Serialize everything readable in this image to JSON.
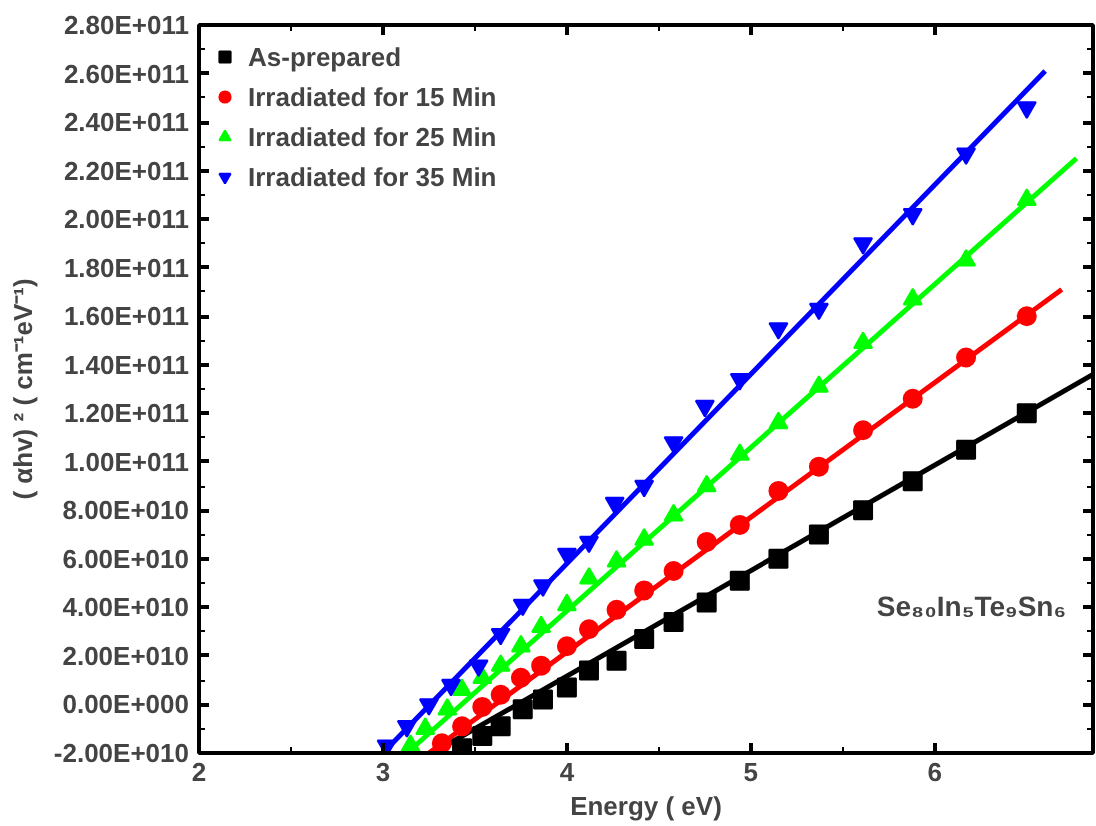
{
  "chart_data": {
    "type": "scatter",
    "xlabel": "Energy ( eV)",
    "ylabel": "( αhv) ² ( cm⁻¹eV⁻¹)",
    "xlim": [
      2,
      6.86
    ],
    "xticks": [
      2,
      3,
      4,
      5,
      6
    ],
    "ylim": [
      -20000000000.0,
      280000000000.0
    ],
    "yticks": [
      {
        "value": -20000000000.0,
        "label": "-2.00E+010"
      },
      {
        "value": 0,
        "label": "0.00E+000"
      },
      {
        "value": 20000000000.0,
        "label": "2.00E+010"
      },
      {
        "value": 40000000000.0,
        "label": "4.00E+010"
      },
      {
        "value": 60000000000.0,
        "label": "6.00E+010"
      },
      {
        "value": 80000000000.0,
        "label": "8.00E+010"
      },
      {
        "value": 100000000000.0,
        "label": "1.00E+011"
      },
      {
        "value": 120000000000.0,
        "label": "1.20E+011"
      },
      {
        "value": 140000000000.0,
        "label": "1.40E+011"
      },
      {
        "value": 160000000000.0,
        "label": "1.60E+011"
      },
      {
        "value": 180000000000.0,
        "label": "1.80E+011"
      },
      {
        "value": 200000000000.0,
        "label": "2.00E+011"
      },
      {
        "value": 220000000000.0,
        "label": "2.20E+011"
      },
      {
        "value": 240000000000.0,
        "label": "2.40E+011"
      },
      {
        "value": 260000000000.0,
        "label": "2.60E+011"
      },
      {
        "value": 280000000000.0,
        "label": "2.80E+011"
      }
    ],
    "grid": false,
    "legend": "top left",
    "annotations": [
      "Se₈₀In₅Te₉Sn₆"
    ],
    "series": [
      {
        "name": "As-prepared",
        "color": "#000000",
        "marker": "square",
        "x": [
          3.43,
          3.54,
          3.64,
          3.76,
          3.87,
          4.0,
          4.12,
          4.27,
          4.42,
          4.58,
          4.76,
          4.94,
          5.15,
          5.37,
          5.61,
          5.88,
          6.17,
          6.5
        ],
        "values": [
          -18000000000.0,
          -13000000000.0,
          -9000000000.0,
          -2000000000.0,
          2000000000.0,
          7000000000.0,
          14000000000.0,
          18000000000.0,
          27000000000.0,
          34000000000.0,
          42000000000.0,
          51000000000.0,
          60000000000.0,
          70000000000.0,
          80000000000.0,
          92000000000.0,
          105000000000.0,
          120000000000.0
        ]
      },
      {
        "name": "Irradiated for 15 Min",
        "color": "#ff0000",
        "marker": "circle",
        "x": [
          3.32,
          3.43,
          3.54,
          3.64,
          3.75,
          3.86,
          4.0,
          4.12,
          4.27,
          4.42,
          4.58,
          4.76,
          4.94,
          5.15,
          5.37,
          5.61,
          5.88,
          6.17,
          6.5
        ],
        "values": [
          -16000000000.0,
          -9000000000.0,
          -1000000000.0,
          4000000000.0,
          11000000000.0,
          16000000000.0,
          24000000000.0,
          31000000000.0,
          39000000000.0,
          47000000000.0,
          55000000000.0,
          67000000000.0,
          74000000000.0,
          88000000000.0,
          98000000000.0,
          113000000000.0,
          126000000000.0,
          143000000000.0,
          160000000000.0
        ]
      },
      {
        "name": "Irradiated for 25 Min",
        "color": "#00ff00",
        "marker": "triangle",
        "x": [
          3.15,
          3.23,
          3.35,
          3.43,
          3.54,
          3.64,
          3.75,
          3.86,
          4.0,
          4.12,
          4.27,
          4.42,
          4.58,
          4.76,
          4.94,
          5.15,
          5.37,
          5.61,
          5.88,
          6.17,
          6.5
        ],
        "values": [
          -17000000000.0,
          -10000000000.0,
          -2000000000.0,
          6000000000.0,
          11000000000.0,
          16000000000.0,
          24000000000.0,
          32000000000.0,
          41000000000.0,
          52000000000.0,
          59000000000.0,
          68000000000.0,
          78000000000.0,
          90000000000.0,
          103000000000.0,
          116000000000.0,
          131000000000.0,
          149000000000.0,
          167000000000.0,
          183000000000.0,
          208000000000.0
        ]
      },
      {
        "name": "Irradiated for 35 Min",
        "color": "#0000ff",
        "x": [
          3.02,
          3.13,
          3.25,
          3.37,
          3.52,
          3.64,
          3.76,
          3.87,
          4.0,
          4.12,
          4.26,
          4.42,
          4.58,
          4.75,
          4.94,
          5.15,
          5.37,
          5.61,
          5.88,
          6.17,
          6.5
        ],
        "values": [
          -17000000000.0,
          -9000000000.0,
          0,
          8000000000.0,
          16000000000.0,
          29000000000.0,
          41000000000.0,
          49000000000.0,
          62000000000.0,
          67000000000.0,
          83000000000.0,
          90000000000.0,
          108000000000.0,
          123000000000.0,
          134000000000.0,
          155000000000.0,
          163000000000.0,
          190000000000.0,
          202000000000.0,
          227000000000.0,
          246000000000.0
        ]
      },
      {
        "type": "line",
        "color": "#000000",
        "x": [
          3.27,
          6.86
        ],
        "values": [
          -20000000000.0,
          136000000000.0
        ]
      },
      {
        "type": "line",
        "color": "#ff0000",
        "x": [
          3.25,
          6.69
        ],
        "values": [
          -20000000000.0,
          171000000000.0
        ]
      },
      {
        "type": "line",
        "color": "#00ff00",
        "x": [
          3.13,
          6.77
        ],
        "values": [
          -20000000000.0,
          225000000000.0
        ]
      },
      {
        "type": "line",
        "color": "#0000ff",
        "x": [
          3.0,
          6.6
        ],
        "values": [
          -20000000000.0,
          261000000000.0
        ]
      }
    ]
  }
}
